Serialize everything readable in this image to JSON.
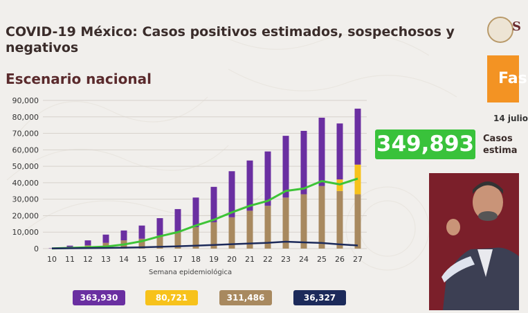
{
  "header": {
    "title": "COVID-19 México: Casos positivos estimados, sospechosos y negativos",
    "subtitle": "Escenario nacional",
    "logo_text": "S",
    "phase_label": "Fas",
    "date": "14 julio",
    "big_number": "349,893",
    "casos_label_1": "Casos",
    "casos_label_2": "estima"
  },
  "legend": {
    "purple": "363,930",
    "yellow": "80,721",
    "tan": "311,486",
    "navy": "36,327"
  },
  "colors": {
    "purple": "#6a2fa1",
    "yellow": "#f7c21b",
    "tan": "#a8895f",
    "navy": "#1c2a5a",
    "green_line": "#3ec437",
    "highlight_green": "#39c23b",
    "phase_orange": "#f39323"
  },
  "chart_data": {
    "type": "bar",
    "stacked": true,
    "xlabel": "Semana epidemiológica",
    "ylabel": "",
    "ylim": [
      0,
      90000
    ],
    "yticks": [
      0,
      10000,
      20000,
      30000,
      40000,
      50000,
      60000,
      70000,
      80000,
      90000
    ],
    "ytick_labels": [
      "0",
      "10,000",
      "20,000",
      "30,000",
      "40,000",
      "50,000",
      "60,000",
      "70,000",
      "80,000",
      "90,000"
    ],
    "categories": [
      "10",
      "11",
      "12",
      "13",
      "14",
      "15",
      "16",
      "17",
      "18",
      "19",
      "20",
      "21",
      "22",
      "23",
      "24",
      "25",
      "26",
      "27"
    ],
    "series": [
      {
        "color": "tan",
        "values": [
          50,
          700,
          2000,
          3500,
          5000,
          6000,
          8000,
          10000,
          13000,
          16000,
          19000,
          23000,
          26000,
          31000,
          33000,
          38000,
          35000,
          33000
        ]
      },
      {
        "color": "yellow",
        "values": [
          0,
          0,
          0,
          0,
          0,
          0,
          0,
          0,
          0,
          0,
          0,
          0,
          0,
          0,
          0,
          0,
          7000,
          18000
        ]
      },
      {
        "color": "purple",
        "values": [
          200,
          1100,
          3000,
          5000,
          6000,
          8000,
          10500,
          14000,
          18000,
          21500,
          28000,
          30500,
          33000,
          37500,
          38500,
          41500,
          34000,
          34000
        ]
      }
    ],
    "lines": [
      {
        "color": "green_line",
        "values": [
          100,
          400,
          800,
          1200,
          2500,
          4500,
          7500,
          10000,
          14000,
          17500,
          22000,
          26000,
          29000,
          35000,
          36500,
          41000,
          39000,
          42500
        ]
      },
      {
        "color": "navy",
        "values": [
          100,
          200,
          300,
          400,
          600,
          800,
          1100,
          1400,
          1800,
          2200,
          2700,
          3100,
          3500,
          4200,
          3800,
          3400,
          2600,
          1900
        ]
      }
    ]
  }
}
